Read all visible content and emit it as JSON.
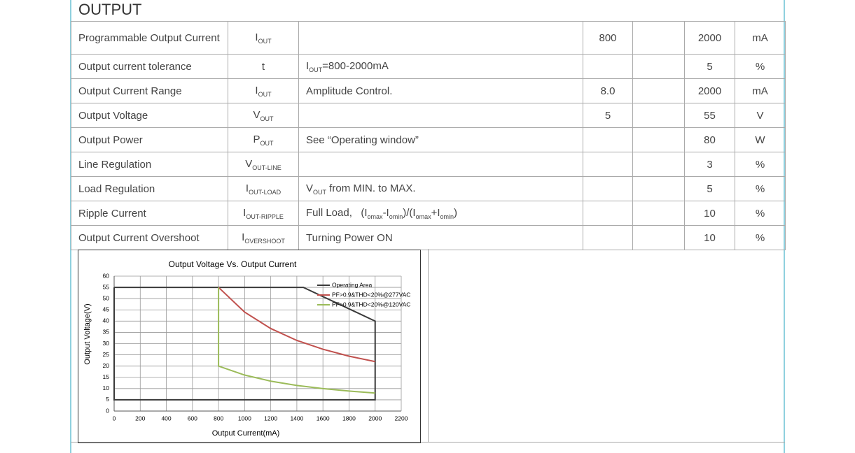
{
  "header": {
    "title": "OUTPUT"
  },
  "table": {
    "rows": [
      {
        "parameter": "Programmable Output Current",
        "symbol": {
          "main": "I",
          "sub": "OUT"
        },
        "condition": null,
        "min": "800",
        "typ": null,
        "max": "2000",
        "unit": "mA"
      },
      {
        "parameter": "Output current tolerance",
        "symbol": {
          "main": "t",
          "sub": null
        },
        "condition": [
          {
            "text": "I",
            "sub": false
          },
          {
            "text": "OUT",
            "sub": true
          },
          {
            "text": "=800-2000mA",
            "sub": false
          }
        ],
        "min": null,
        "typ": null,
        "max": "5",
        "unit": "%"
      },
      {
        "parameter": "Output Current Range",
        "symbol": {
          "main": "I",
          "sub": "OUT"
        },
        "condition": [
          {
            "text": "Amplitude Control.",
            "sub": false
          }
        ],
        "min": "8.0",
        "typ": null,
        "max": "2000",
        "unit": "mA"
      },
      {
        "parameter": "Output Voltage",
        "symbol": {
          "main": "V",
          "sub": "OUT"
        },
        "condition": null,
        "min": "5",
        "typ": null,
        "max": "55",
        "unit": "V"
      },
      {
        "parameter": "Output Power",
        "symbol": {
          "main": "P",
          "sub": "OUT"
        },
        "condition": [
          {
            "text": "See “Operating window”",
            "sub": false
          }
        ],
        "min": null,
        "typ": null,
        "max": "80",
        "unit": "W"
      },
      {
        "parameter": "Line Regulation",
        "symbol": {
          "main": "V",
          "sub": "OUT-LINE"
        },
        "condition": null,
        "min": null,
        "typ": null,
        "max": "3",
        "unit": "%"
      },
      {
        "parameter": "Load Regulation",
        "symbol": {
          "main": "I",
          "sub": "OUT-LOAD"
        },
        "condition": [
          {
            "text": "V",
            "sub": false
          },
          {
            "text": "OUT",
            "sub": true
          },
          {
            "text": " from MIN. to MAX.",
            "sub": false
          }
        ],
        "min": null,
        "typ": null,
        "max": "5",
        "unit": "%"
      },
      {
        "parameter": "Ripple Current",
        "symbol": {
          "main": "I",
          "sub": "OUT-RIPPLE"
        },
        "condition": [
          {
            "text": "Full Load,   (I",
            "sub": false
          },
          {
            "text": "omax",
            "sub": true
          },
          {
            "text": "-I",
            "sub": false
          },
          {
            "text": "omin",
            "sub": true
          },
          {
            "text": ")/(I",
            "sub": false
          },
          {
            "text": "omax",
            "sub": true
          },
          {
            "text": "+I",
            "sub": false
          },
          {
            "text": "omin",
            "sub": true
          },
          {
            "text": ")",
            "sub": false
          }
        ],
        "min": null,
        "typ": null,
        "max": "10",
        "unit": "%"
      },
      {
        "parameter": "Output Current Overshoot",
        "symbol": {
          "main": "I",
          "sub": "OVERSHOOT"
        },
        "condition": [
          {
            "text": "Turning Power ON",
            "sub": false
          }
        ],
        "min": null,
        "typ": null,
        "max": "10",
        "unit": "%"
      }
    ]
  },
  "chart_data": {
    "type": "line",
    "title": "Output Voltage Vs. Output Current",
    "xlabel": "Output Current(mA)",
    "ylabel": "Output Voltage(V)",
    "xlim": [
      0,
      2200
    ],
    "xticks": [
      0,
      200,
      400,
      600,
      800,
      1000,
      1200,
      1400,
      1600,
      1800,
      2000,
      2200
    ],
    "ylim": [
      0,
      60
    ],
    "yticks": [
      0,
      5,
      10,
      15,
      20,
      25,
      30,
      35,
      40,
      45,
      50,
      55,
      60
    ],
    "grid": true,
    "legend": "upper-right",
    "series": [
      {
        "name": "Operating Area",
        "color": "#3a3a3a",
        "x": [
          0,
          1450,
          2000,
          2000,
          0,
          0
        ],
        "values": [
          55,
          55,
          40,
          5,
          5,
          55
        ]
      },
      {
        "name": "PF>0.9&THD<20%@277VAC",
        "color": "#c0504d",
        "x": [
          800,
          1000,
          1200,
          1400,
          1600,
          1800,
          2000
        ],
        "values": [
          55,
          44,
          36.7,
          31.4,
          27.5,
          24.4,
          22
        ]
      },
      {
        "name": "PF>0.9&THD<20%@120VAC",
        "color": "#9bbb59",
        "x": [
          800,
          800,
          1000,
          1200,
          1400,
          1600,
          1800,
          2000
        ],
        "values": [
          55,
          20,
          16,
          13.3,
          11.4,
          10,
          8.9,
          8
        ]
      }
    ]
  }
}
